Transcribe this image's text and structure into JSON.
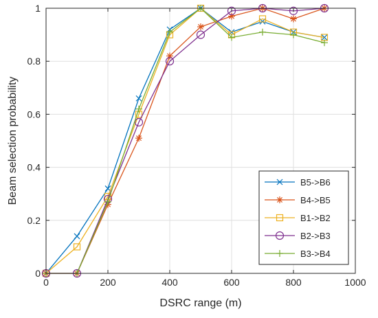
{
  "chart_data": {
    "type": "line",
    "title": "",
    "xlabel": "DSRC range (m)",
    "ylabel": "Beam selection probability",
    "xlim": [
      0,
      1000
    ],
    "ylim": [
      0,
      1
    ],
    "xticks": [
      0,
      200,
      400,
      600,
      800,
      1000
    ],
    "yticks": [
      0,
      0.2,
      0.4,
      0.6,
      0.8,
      1
    ],
    "xtick_labels": [
      "0",
      "200",
      "400",
      "600",
      "800",
      "1000"
    ],
    "ytick_labels": [
      "0",
      "0.2",
      "0.4",
      "0.6",
      "0.8",
      "1"
    ],
    "grid": true,
    "legend_position": "bottom-right",
    "x": [
      0,
      100,
      200,
      300,
      400,
      500,
      600,
      700,
      800,
      900
    ],
    "series": [
      {
        "name": "B5->B6",
        "color": "#0072BD",
        "marker": "x",
        "values": [
          0,
          0.14,
          0.32,
          0.66,
          0.92,
          1.0,
          0.91,
          0.95,
          0.91,
          0.89
        ]
      },
      {
        "name": "B4->B5",
        "color": "#D95319",
        "marker": "asterisk",
        "values": [
          0,
          0,
          0.26,
          0.51,
          0.82,
          0.93,
          0.97,
          1.0,
          0.96,
          1.0
        ]
      },
      {
        "name": "B1->B2",
        "color": "#EDB120",
        "marker": "square",
        "values": [
          0,
          0.1,
          0.29,
          0.6,
          0.9,
          1.0,
          0.9,
          0.96,
          0.91,
          0.89
        ]
      },
      {
        "name": "B2->B3",
        "color": "#7E2F8E",
        "marker": "circle",
        "values": [
          0,
          0,
          0.28,
          0.57,
          0.8,
          0.9,
          0.99,
          1.0,
          0.99,
          1.0
        ]
      },
      {
        "name": "B3->B4",
        "color": "#77AC30",
        "marker": "plus",
        "values": [
          0,
          0,
          0.27,
          0.62,
          0.91,
          1.0,
          0.89,
          0.91,
          0.9,
          0.87
        ]
      }
    ]
  }
}
